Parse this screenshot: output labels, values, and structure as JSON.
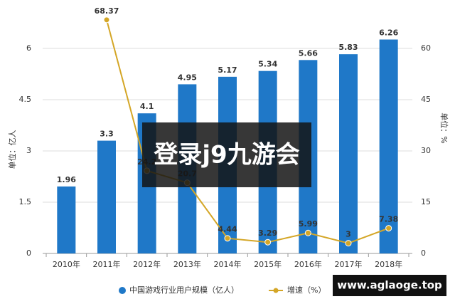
{
  "chart_data": {
    "type": "bar-line",
    "categories": [
      "2010年",
      "2011年",
      "2012年",
      "2013年",
      "2014年",
      "2015年",
      "2016年",
      "2017年",
      "2018年"
    ],
    "series": [
      {
        "name": "中国游戏行业用户规模（亿人）",
        "color": "#1f78c8",
        "values": [
          1.96,
          3.3,
          4.1,
          4.95,
          5.17,
          5.34,
          5.66,
          5.83,
          6.26
        ]
      },
      {
        "name": "增速（%）",
        "color": "#d4a626",
        "axis": "y2",
        "values": [
          null,
          68.37,
          24.2,
          20.7,
          4.44,
          3.29,
          5.99,
          3,
          7.38
        ]
      }
    ],
    "ylabel": "单位：亿人",
    "y2label": "单位：%",
    "ylim": [
      0,
      7
    ],
    "yticks": [
      0,
      1.5,
      3,
      4.5,
      6
    ],
    "y2lim": [
      0,
      70
    ],
    "y2ticks": [
      0,
      15,
      30,
      45,
      60
    ],
    "grid": true,
    "legend": "bottom"
  },
  "overlay": {
    "banner": "登录j9九游会",
    "site": "www.aglaoge.top"
  }
}
